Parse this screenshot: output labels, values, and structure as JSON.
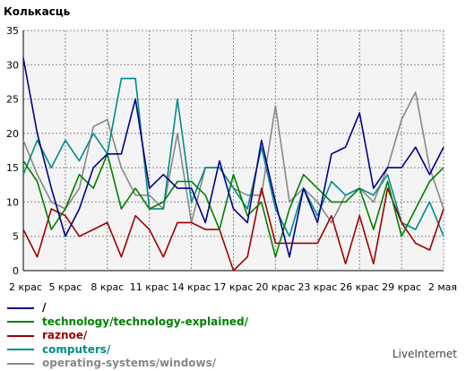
{
  "chart_data": {
    "type": "line",
    "title": "Колькасць",
    "ylim": [
      0,
      35
    ],
    "yticks": [
      0,
      5,
      10,
      15,
      20,
      25,
      30,
      35
    ],
    "grid": true,
    "legend_position": "bottom",
    "xtick_labels": [
      "2 крас",
      "5 крас",
      "8 крас",
      "11 крас",
      "14 крас",
      "17 крас",
      "20 крас",
      "23 крас",
      "26 крас",
      "29 крас",
      "2 мая"
    ],
    "series": [
      {
        "name": "/",
        "color": "#00008b",
        "values": [
          31,
          20,
          12,
          5,
          9,
          15,
          17,
          17,
          25,
          12,
          14,
          12,
          12,
          7,
          16,
          9,
          7,
          19,
          10,
          2,
          12,
          7,
          17,
          18,
          23,
          12,
          15,
          15,
          18,
          14,
          18
        ]
      },
      {
        "name": "technology/technology-explained/",
        "color": "#008000",
        "values": [
          16,
          13,
          6,
          9,
          14,
          12,
          17,
          9,
          12,
          9,
          10,
          13,
          13,
          11,
          6,
          14,
          8,
          10,
          2,
          9,
          14,
          12,
          10,
          10,
          12,
          6,
          13,
          5,
          9,
          13,
          15
        ]
      },
      {
        "name": "raznoe/",
        "color": "#a00000",
        "values": [
          6,
          2,
          9,
          8,
          5,
          6,
          7,
          2,
          8,
          6,
          2,
          7,
          7,
          6,
          6,
          0,
          2,
          12,
          4,
          4,
          4,
          4,
          8,
          1,
          8,
          1,
          12,
          7,
          4,
          3,
          9
        ]
      },
      {
        "name": "computers/",
        "color": "#008b8b",
        "values": [
          14,
          19,
          15,
          19,
          16,
          20,
          17,
          28,
          28,
          9,
          9,
          25,
          10,
          15,
          15,
          12,
          9,
          18,
          9,
          5,
          12,
          8,
          13,
          11,
          12,
          11,
          14,
          7,
          6,
          10,
          5
        ]
      },
      {
        "name": "operating-systems/windows/",
        "color": "#888888",
        "values": [
          19,
          14,
          10,
          9,
          12,
          21,
          22,
          15,
          11,
          11,
          9,
          20,
          7,
          15,
          15,
          12,
          11,
          11,
          24,
          10,
          12,
          10,
          7,
          11,
          12,
          10,
          15,
          22,
          26,
          15,
          9
        ]
      }
    ]
  },
  "brand": "LiveInternet"
}
